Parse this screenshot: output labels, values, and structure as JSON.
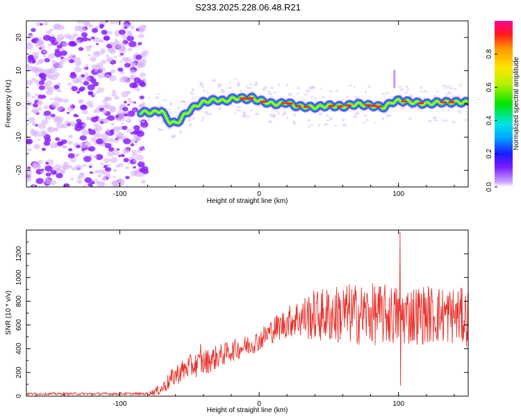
{
  "title": "S233.2025.228.06.48.R21",
  "colors": {
    "snr_line": "#e8302a",
    "frame": "#000000",
    "background": "#ffffff",
    "ridge_core": "#ff2a1a",
    "ridge_edge": "#1a2bff",
    "noise_light": "#d9b3ff",
    "noise_dark": "#8a22ff"
  },
  "chart_data": [
    {
      "type": "heatmap",
      "name": "spectrogram",
      "xlabel": "Height of straight line (km)",
      "ylabel": "Frequency (Hz)",
      "xlim": [
        -167,
        150
      ],
      "ylim": [
        -25,
        25
      ],
      "xticks": [
        -100,
        0,
        100
      ],
      "yticks": [
        -20,
        -10,
        0,
        10,
        20
      ],
      "colorbar": {
        "label": "Normalized spectral amplitude",
        "range": [
          0,
          1
        ],
        "ticks": [
          0.0,
          0.2,
          0.4,
          0.6,
          0.8
        ],
        "colormap": "rainbow"
      },
      "noise_region_x": [
        -167,
        -85
      ],
      "ridge": {
        "x": [
          -85,
          -80,
          -75,
          -70,
          -67,
          -64,
          -60,
          -57,
          -54,
          -50,
          -45,
          -40,
          -35,
          -30,
          -25,
          -20,
          -15,
          -10,
          -5,
          0,
          5,
          10,
          15,
          20,
          25,
          30,
          40,
          50,
          60,
          70,
          80,
          90,
          95,
          100,
          110,
          120,
          130,
          140,
          150
        ],
        "freq_hz": [
          -2.5,
          -2.5,
          -2.5,
          -2,
          -4,
          -5.5,
          -5.8,
          -5,
          -3.5,
          -2,
          -0.5,
          0.5,
          1,
          1.2,
          0.8,
          1.5,
          1.8,
          1.5,
          1.8,
          1,
          0.5,
          0,
          0,
          0.5,
          -0.5,
          -0.8,
          -1,
          -0.5,
          -0.8,
          0,
          -0.5,
          -1,
          0.5,
          1,
          0.5,
          0,
          0.5,
          0.5,
          0.5
        ]
      },
      "spike": {
        "x": 97,
        "freq_range_hz": [
          5,
          10
        ]
      }
    },
    {
      "type": "line",
      "name": "snr",
      "xlabel": "Height of straight line (km)",
      "ylabel": "SNR (10 * v/v)",
      "xlim": [
        -167,
        150
      ],
      "ylim": [
        0,
        1400
      ],
      "xticks": [
        -100,
        0,
        100
      ],
      "yticks": [
        0,
        200,
        400,
        600,
        800,
        1000,
        1200
      ],
      "series": [
        {
          "name": "SNR",
          "trend_x": [
            -167,
            -80,
            -70,
            -60,
            -50,
            -40,
            -30,
            -20,
            -10,
            0,
            10,
            20,
            25,
            40,
            60,
            80,
            100,
            120,
            140,
            150
          ],
          "trend_y": [
            20,
            20,
            60,
            180,
            250,
            280,
            330,
            380,
            420,
            470,
            560,
            620,
            650,
            680,
            690,
            690,
            680,
            690,
            680,
            660
          ],
          "amplitude_x": [
            -167,
            -80,
            -60,
            -40,
            -20,
            0,
            20,
            40,
            60,
            80,
            100,
            150
          ],
          "amplitude_y": [
            10,
            12,
            90,
            110,
            90,
            90,
            130,
            220,
            260,
            260,
            260,
            240
          ],
          "features": [
            {
              "x": 101,
              "y": 1380,
              "label": "peak"
            },
            {
              "x": 101.6,
              "y": 90,
              "label": "dip"
            },
            {
              "x": -42,
              "y": 440,
              "label": "early peak"
            }
          ]
        }
      ]
    }
  ]
}
